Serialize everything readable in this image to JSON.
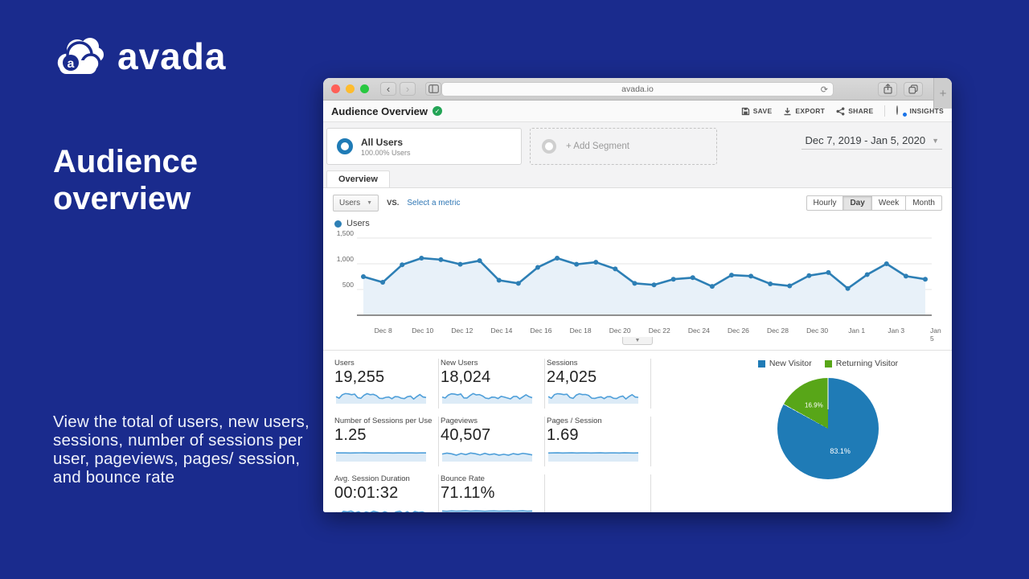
{
  "brand": {
    "name": "avada",
    "heading": "Audience overview",
    "description": "View the total of users, new users, sessions, number of sessions per user, pageviews, pages/ session, and bounce rate"
  },
  "browser": {
    "url": "avada.io"
  },
  "ga": {
    "page_title": "Audience Overview",
    "toolbar": {
      "save": "SAVE",
      "export": "EXPORT",
      "share": "SHARE",
      "insights": "INSIGHTS"
    },
    "segments": {
      "all_users_title": "All Users",
      "all_users_subtitle": "100.00% Users",
      "add_segment": "+ Add Segment"
    },
    "date_range": "Dec 7, 2019 - Jan 5, 2020",
    "tab_label": "Overview",
    "metric_dropdown": "Users",
    "vs_label": "VS.",
    "select_metric_link": "Select a metric",
    "granularity": [
      "Hourly",
      "Day",
      "Week",
      "Month"
    ],
    "granularity_selected": "Day",
    "chart_legend": "Users",
    "metrics": [
      {
        "label": "Users",
        "value": "19,255",
        "sparkline": [
          5.5,
          4.2,
          7.2,
          8.3,
          8,
          7.3,
          7.8,
          4.6,
          4.1,
          6.8,
          8.2,
          7.3,
          7.6,
          6.5,
          4.1,
          3.9,
          4.9,
          5.2,
          3.7,
          5.6,
          5.4,
          4.2,
          3.8,
          5.5,
          6,
          3.4,
          5.6,
          7.4,
          5.3,
          4.8
        ]
      },
      {
        "label": "New Users",
        "value": "18,024",
        "sparkline": [
          5.2,
          4.4,
          7,
          8.1,
          7.8,
          7.1,
          7.9,
          4.4,
          4.3,
          6.6,
          8.3,
          7.1,
          7.4,
          6.2,
          4.3,
          3.8,
          5.1,
          5,
          3.9,
          5.8,
          5.2,
          4.4,
          3.6,
          5.7,
          5.8,
          3.6,
          5.4,
          7.2,
          5.5,
          4.6
        ]
      },
      {
        "label": "Sessions",
        "value": "24,025",
        "sparkline": [
          5.6,
          4.1,
          7.4,
          8.2,
          7.9,
          7.4,
          7.7,
          4.8,
          4,
          6.9,
          8.1,
          7.4,
          7.5,
          6.6,
          4.2,
          4,
          4.8,
          5.3,
          3.8,
          5.5,
          5.6,
          4.1,
          3.9,
          5.4,
          6.1,
          3.5,
          5.7,
          7.3,
          5.2,
          4.9
        ]
      },
      {
        "label": "Number of Sessions per User",
        "value": "1.25",
        "sparkline": [
          7,
          7.05,
          7,
          6.95,
          7,
          7.05,
          7.1,
          7,
          6.95,
          7,
          7.05,
          7,
          6.9,
          7,
          7.05,
          7,
          7,
          6.95,
          7.05,
          7
        ]
      },
      {
        "label": "Pageviews",
        "value": "40,507",
        "sparkline": [
          6,
          6.8,
          6.2,
          5,
          6.5,
          5.5,
          6.9,
          6.3,
          5.2,
          6.6,
          5.4,
          6.2,
          5,
          5.8,
          5,
          6.4,
          5.6,
          6.6,
          6,
          5.2
        ]
      },
      {
        "label": "Pages / Session",
        "value": "1.69",
        "sparkline": [
          6.9,
          7,
          7.1,
          6.95,
          7,
          7.1,
          6.9,
          7,
          7.05,
          6.9,
          7,
          7.1,
          6.95,
          7,
          7.05,
          6.9,
          7.1,
          7,
          6.95,
          7
        ]
      },
      {
        "label": "Avg. Session Duration",
        "value": "00:01:32",
        "sparkline": [
          5.5,
          4,
          6.5,
          6,
          6.8,
          5.2,
          6.2,
          4.5,
          6,
          5.2,
          6.6,
          5.8,
          4.8,
          6.2,
          5,
          4.2,
          6,
          6.6,
          4.6,
          6.2,
          4.4,
          6.4,
          5.6,
          6,
          4.8
        ]
      },
      {
        "label": "Bounce Rate",
        "value": "71.11%",
        "sparkline": [
          6.8,
          6.6,
          6.9,
          6.7,
          6.8,
          7,
          6.7,
          6.9,
          6.8,
          6.6,
          6.8,
          6.9,
          6.7,
          6.8,
          6.9,
          6.7,
          6.8,
          7,
          6.7,
          6.8
        ]
      }
    ]
  },
  "chart_data": [
    {
      "id": "users-over-time",
      "type": "area",
      "title": "Users",
      "x": [
        "Dec 7",
        "Dec 8",
        "Dec 9",
        "Dec 10",
        "Dec 11",
        "Dec 12",
        "Dec 13",
        "Dec 14",
        "Dec 15",
        "Dec 16",
        "Dec 17",
        "Dec 18",
        "Dec 19",
        "Dec 20",
        "Dec 21",
        "Dec 22",
        "Dec 23",
        "Dec 24",
        "Dec 25",
        "Dec 26",
        "Dec 27",
        "Dec 28",
        "Dec 29",
        "Dec 30",
        "Dec 31",
        "Jan 1",
        "Jan 2",
        "Jan 3",
        "Jan 4",
        "Jan 5"
      ],
      "values": [
        750,
        640,
        980,
        1110,
        1080,
        990,
        1060,
        680,
        620,
        930,
        1110,
        990,
        1030,
        900,
        620,
        590,
        700,
        730,
        560,
        780,
        760,
        610,
        570,
        770,
        830,
        520,
        790,
        1000,
        760,
        700
      ],
      "x_tick_labels": [
        "Dec 8",
        "Dec 10",
        "Dec 12",
        "Dec 14",
        "Dec 16",
        "Dec 18",
        "Dec 20",
        "Dec 22",
        "Dec 24",
        "Dec 26",
        "Dec 28",
        "Dec 30",
        "Jan 1",
        "Jan 3",
        "Jan 5"
      ],
      "y_ticks": [
        500,
        1000,
        1500
      ],
      "y_tick_labels": [
        "500",
        "1,000",
        "1,500"
      ],
      "ylim": [
        0,
        1500
      ],
      "line_color": "#2d7fb5",
      "fill_color": "#e8f1f9",
      "grid": true,
      "legend_position": "top-left"
    },
    {
      "id": "visitor-type-pie",
      "type": "pie",
      "labels": [
        "New Visitor",
        "Returning Visitor"
      ],
      "values": [
        83.1,
        16.9
      ],
      "value_labels": [
        "83.1%",
        "16.9%"
      ],
      "colors": [
        "#1f7bb6",
        "#58a618"
      ]
    }
  ]
}
